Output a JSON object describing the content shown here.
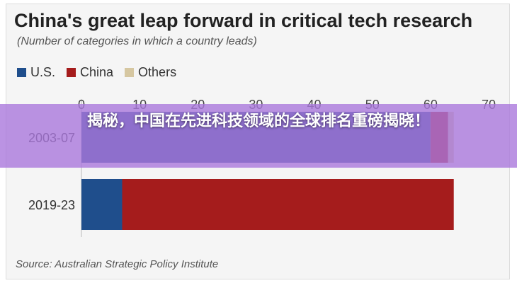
{
  "chart_data": {
    "type": "bar",
    "orientation": "horizontal",
    "stacked": true,
    "title": "China's great leap forward in critical tech research",
    "subtitle": "(Number of categories in which a country leads)",
    "categories": [
      "2003-07",
      "2019-23"
    ],
    "series": [
      {
        "name": "U.S.",
        "color": "#1f4e8c",
        "values": [
          60,
          7
        ]
      },
      {
        "name": "China",
        "color": "#a51c1c",
        "values": [
          3,
          57
        ]
      },
      {
        "name": "Others",
        "color": "#d6c7a1",
        "values": [
          1,
          0
        ]
      }
    ],
    "xlim": [
      0,
      70
    ],
    "xticks": [
      "0",
      "10",
      "20",
      "30",
      "40",
      "50",
      "60",
      "70"
    ],
    "xaxis_position": "top",
    "legend_position": "top-left",
    "grid": false,
    "source": "Source: Australian Strategic Policy Institute"
  },
  "overlay": {
    "banner_text": "揭秘，中国在先进科技领域的全球排名重磅揭晓！"
  }
}
